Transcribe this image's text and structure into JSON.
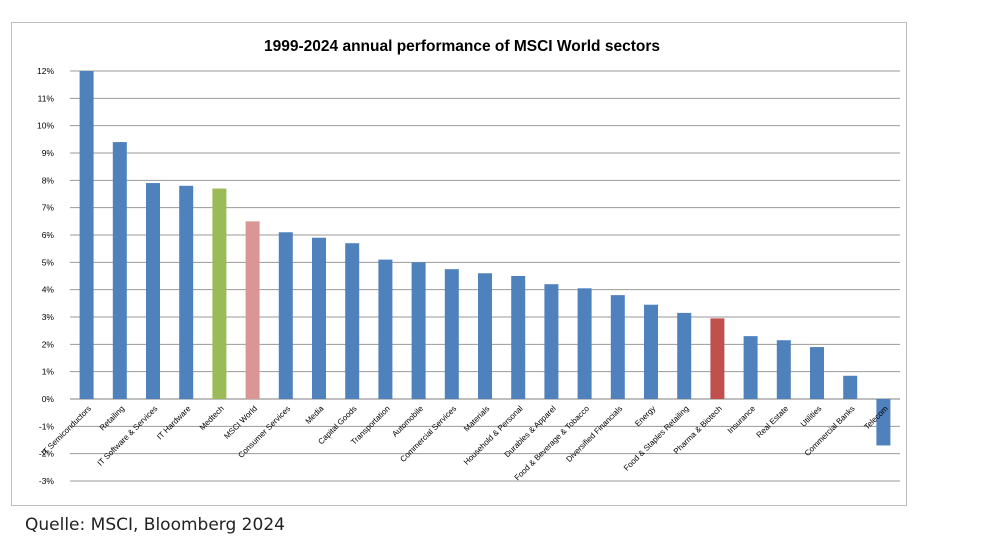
{
  "chart_data": {
    "type": "bar",
    "title": "1999-2024 annual performance of MSCI World sectors",
    "xlabel": "",
    "ylabel": "",
    "ylim": [
      -3,
      12
    ],
    "y_ticks": [
      "12%",
      "11%",
      "10%",
      "9%",
      "8%",
      "7%",
      "6%",
      "5%",
      "4%",
      "3%",
      "2%",
      "1%",
      "0%",
      "-1%",
      "-2%",
      "-3%"
    ],
    "grid": true,
    "legend": "none",
    "categories": [
      "IT Semiconductors",
      "Retailing",
      "IT Software & Services",
      "IT Hardware",
      "Medtech",
      "MSCI World",
      "Consumer Services",
      "Media",
      "Capital Goods",
      "Transportation",
      "Automobile",
      "Commercial Services",
      "Materials",
      "Household & Personal",
      "Durables & Apparel",
      "Food & Beverage & Tobacco",
      "Diversified Financials",
      "Energy",
      "Food & Staples Retailing",
      "Pharma & Biotech",
      "Insurance",
      "Real Estate",
      "Utilities",
      "Commercial Banks",
      "Telecom"
    ],
    "values": [
      12.0,
      9.4,
      7.9,
      7.8,
      7.7,
      6.5,
      6.1,
      5.9,
      5.7,
      5.1,
      5.0,
      4.75,
      4.6,
      4.5,
      4.2,
      4.05,
      3.8,
      3.45,
      3.15,
      2.95,
      2.3,
      2.15,
      1.9,
      0.85,
      -1.7
    ],
    "bar_colors": [
      "#4f81bd",
      "#4f81bd",
      "#4f81bd",
      "#4f81bd",
      "#9bbb59",
      "#d99694",
      "#4f81bd",
      "#4f81bd",
      "#4f81bd",
      "#4f81bd",
      "#4f81bd",
      "#4f81bd",
      "#4f81bd",
      "#4f81bd",
      "#4f81bd",
      "#4f81bd",
      "#4f81bd",
      "#4f81bd",
      "#4f81bd",
      "#c0504d",
      "#4f81bd",
      "#4f81bd",
      "#4f81bd",
      "#4f81bd",
      "#4f81bd"
    ]
  },
  "source_note": "Quelle: MSCI, Bloomberg 2024"
}
